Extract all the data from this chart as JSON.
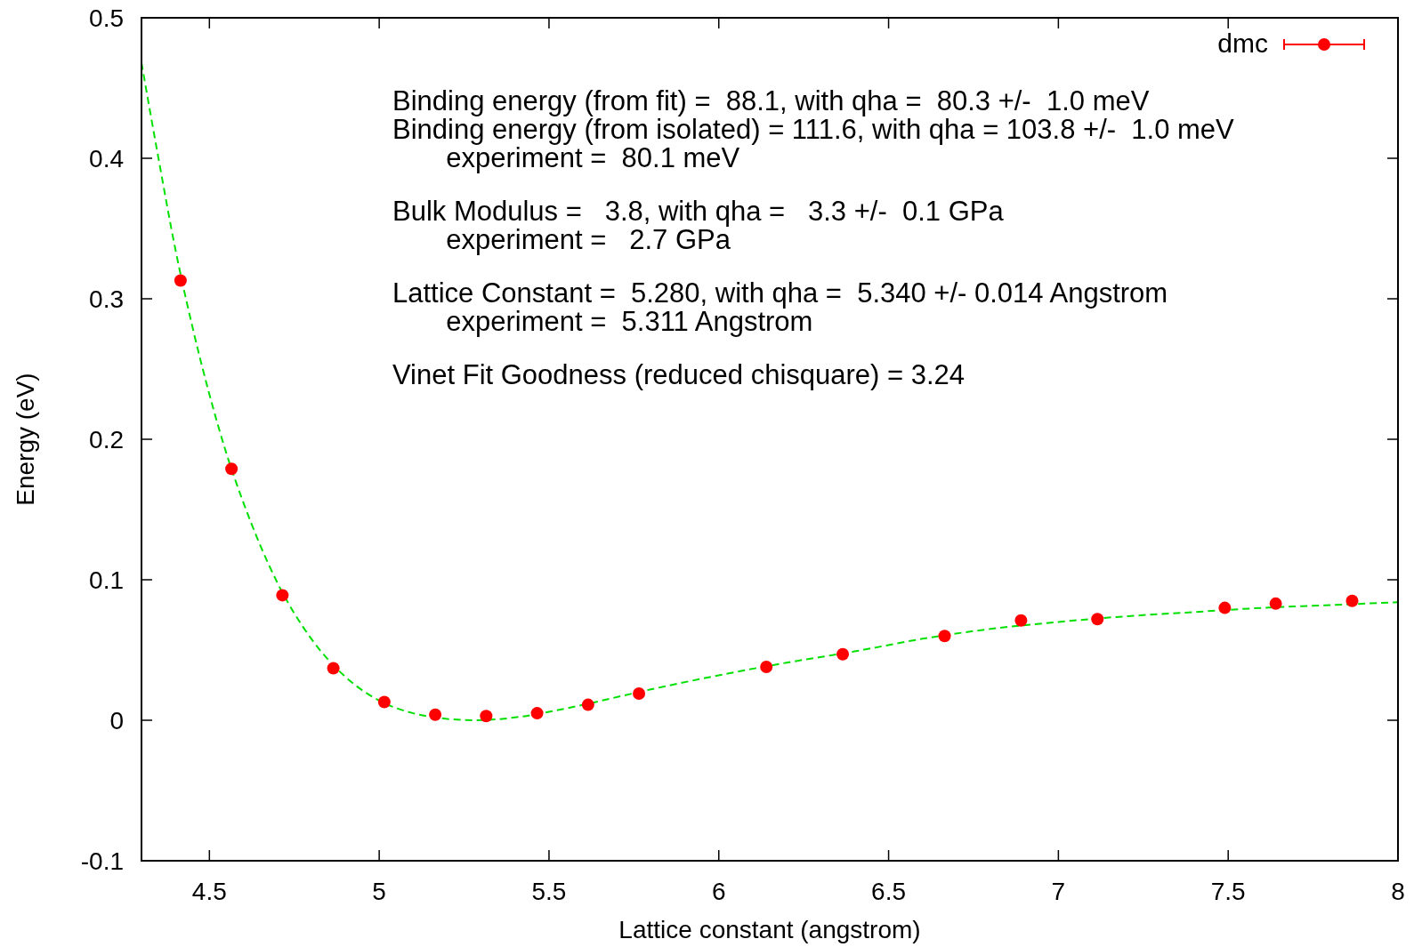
{
  "chart_data": {
    "type": "scatter",
    "xlabel": "Lattice constant (angstrom)",
    "ylabel": "Energy (eV)",
    "xlim": [
      4.3,
      8
    ],
    "ylim": [
      -0.1,
      0.5
    ],
    "xticks": [
      4.5,
      5,
      5.5,
      6,
      6.5,
      7,
      7.5,
      8
    ],
    "yticks": [
      -0.1,
      0,
      0.1,
      0.2,
      0.3,
      0.4,
      0.5
    ],
    "grid": false,
    "legend": "top right",
    "series": [
      {
        "name": "dmc",
        "color": "#ff0000",
        "marker": "circle",
        "x": [
          4.415,
          4.565,
          4.715,
          4.865,
          5.015,
          5.165,
          5.315,
          5.465,
          5.615,
          5.765,
          6.14,
          6.365,
          6.665,
          6.89,
          7.115,
          7.49,
          7.64,
          7.865
        ],
        "values": [
          0.313,
          0.179,
          0.089,
          0.037,
          0.013,
          0.004,
          0.003,
          0.005,
          0.011,
          0.019,
          0.038,
          0.047,
          0.06,
          0.071,
          0.072,
          0.08,
          0.083,
          0.085
        ]
      },
      {
        "type": "line",
        "color": "#00e000",
        "line_style": "dashed",
        "x": [
          4.3,
          4.35,
          4.4,
          4.45,
          4.5,
          4.55,
          4.6,
          4.7,
          4.8,
          4.9,
          5.0,
          5.1,
          5.2,
          5.28,
          5.4,
          5.5,
          5.6,
          5.8,
          6.0,
          6.2,
          6.4,
          6.6,
          6.8,
          7.0,
          7.2,
          7.4,
          7.6,
          7.8,
          8.0
        ],
        "values": [
          0.468,
          0.4,
          0.335,
          0.28,
          0.232,
          0.19,
          0.155,
          0.098,
          0.058,
          0.031,
          0.014,
          0.005,
          0.001,
          0,
          0.002,
          0.006,
          0.011,
          0.022,
          0.032,
          0.041,
          0.049,
          0.058,
          0.065,
          0.07,
          0.074,
          0.077,
          0.08,
          0.082,
          0.084
        ]
      }
    ],
    "annotations": [
      "Binding energy (from fit) =  88.1, with qha =  80.3 +/-  1.0 meV\nBinding energy (from isolated) = 111.6, with qha = 103.8 +/-  1.0 meV\n       experiment =  80.1 meV",
      "Bulk Modulus =   3.8, with qha =   3.3 +/-  0.1 GPa\n       experiment =   2.7 GPa",
      "Lattice Constant =  5.280, with qha =  5.340 +/- 0.014 Angstrom\n       experiment =  5.311 Angstrom",
      "Vinet Fit Goodness (reduced chisquare) = 3.24"
    ]
  }
}
